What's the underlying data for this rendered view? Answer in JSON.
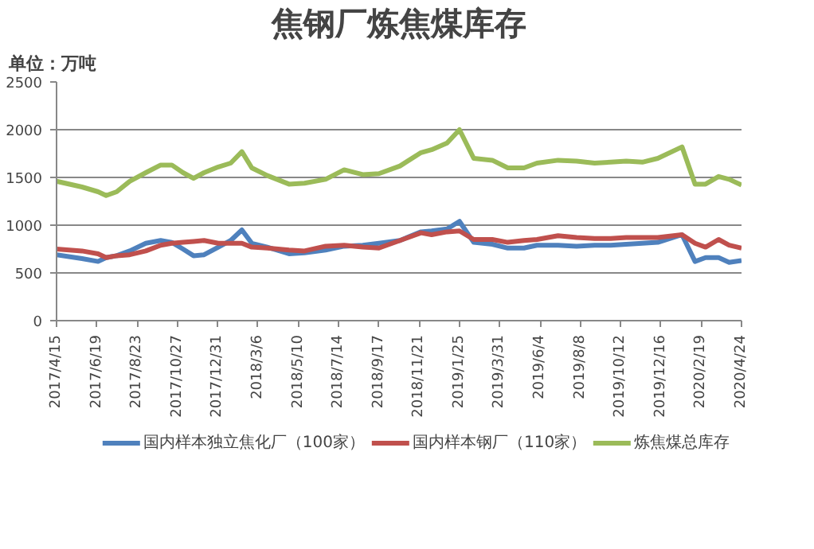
{
  "chart_data": {
    "type": "line",
    "title": "焦钢厂炼焦煤库存",
    "annotations": [
      "单位：万吨"
    ],
    "x": [
      "2017-04-15",
      "2017-05-26",
      "2017-06-21",
      "2017-07-04",
      "2017-07-21",
      "2017-08-11",
      "2017-09-06",
      "2017-09-30",
      "2017-10-18",
      "2017-11-05",
      "2017-11-22",
      "2017-12-09",
      "2018-01-01",
      "2018-01-21",
      "2018-02-08",
      "2018-02-24",
      "2018-03-21",
      "2018-04-25",
      "2018-05-20",
      "2018-06-23",
      "2018-07-23",
      "2018-08-22",
      "2018-09-17",
      "2018-10-21",
      "2018-11-24",
      "2018-12-11",
      "2019-01-05",
      "2019-01-25",
      "2019-02-17",
      "2019-03-19",
      "2019-04-13",
      "2019-05-09",
      "2019-05-30",
      "2019-07-03",
      "2019-08-02",
      "2019-08-31",
      "2019-09-26",
      "2019-10-21",
      "2019-11-16",
      "2019-12-11",
      "2020-01-19",
      "2020-02-09",
      "2020-02-26",
      "2020-03-18",
      "2020-04-04",
      "2020-04-24"
    ],
    "series": [
      {
        "name": "国内样本独立焦化厂（100家）",
        "color": "#4f81bd",
        "values": [
          690,
          650,
          620,
          660,
          680,
          730,
          810,
          840,
          820,
          750,
          680,
          690,
          770,
          840,
          950,
          810,
          770,
          700,
          710,
          740,
          780,
          790,
          810,
          840,
          930,
          940,
          960,
          1040,
          820,
          800,
          760,
          760,
          790,
          790,
          780,
          790,
          790,
          800,
          810,
          820,
          900,
          620,
          660,
          660,
          610,
          630
        ]
      },
      {
        "name": "国内样本钢厂（110家）",
        "color": "#c0504d",
        "values": [
          750,
          730,
          700,
          660,
          680,
          690,
          730,
          790,
          810,
          820,
          830,
          840,
          810,
          810,
          810,
          770,
          760,
          740,
          730,
          780,
          790,
          770,
          760,
          840,
          920,
          900,
          930,
          940,
          850,
          850,
          820,
          840,
          850,
          890,
          870,
          860,
          860,
          870,
          870,
          870,
          900,
          810,
          770,
          850,
          790,
          760
        ]
      },
      {
        "name": "炼焦煤总库存",
        "color": "#9bbb59",
        "values": [
          1460,
          1400,
          1350,
          1310,
          1350,
          1460,
          1550,
          1630,
          1630,
          1550,
          1490,
          1550,
          1610,
          1650,
          1770,
          1600,
          1520,
          1430,
          1440,
          1480,
          1580,
          1530,
          1540,
          1620,
          1760,
          1790,
          1860,
          2000,
          1700,
          1680,
          1600,
          1600,
          1650,
          1680,
          1670,
          1650,
          1660,
          1670,
          1660,
          1700,
          1820,
          1430,
          1430,
          1510,
          1480,
          1420
        ]
      }
    ],
    "xlim": [
      "2017-04-15",
      "2020-04-24"
    ],
    "xticks": [
      {
        "value": "2017-04-15",
        "label": "2017/4/15"
      },
      {
        "value": "2017-06-19",
        "label": "2017/6/19"
      },
      {
        "value": "2017-08-23",
        "label": "2017/8/23"
      },
      {
        "value": "2017-10-27",
        "label": "2017/10/27"
      },
      {
        "value": "2017-12-31",
        "label": "2017/12/31"
      },
      {
        "value": "2018-03-06",
        "label": "2018/3/6"
      },
      {
        "value": "2018-05-10",
        "label": "2018/5/10"
      },
      {
        "value": "2018-07-14",
        "label": "2018/7/14"
      },
      {
        "value": "2018-09-17",
        "label": "2018/9/17"
      },
      {
        "value": "2018-11-21",
        "label": "2018/11/21"
      },
      {
        "value": "2019-01-25",
        "label": "2019/1/25"
      },
      {
        "value": "2019-03-31",
        "label": "2019/3/31"
      },
      {
        "value": "2019-06-04",
        "label": "2019/6/4"
      },
      {
        "value": "2019-08-08",
        "label": "2019/8/8"
      },
      {
        "value": "2019-10-12",
        "label": "2019/10/12"
      },
      {
        "value": "2019-12-16",
        "label": "2019/12/16"
      },
      {
        "value": "2020-02-19",
        "label": "2020/2/19"
      },
      {
        "value": "2020-04-24",
        "label": "2020/4/24"
      }
    ],
    "ylim": [
      0,
      2500
    ],
    "yticks": [
      0,
      500,
      1000,
      1500,
      2000,
      2500
    ],
    "grid": "y",
    "legend": "bottom",
    "marker": "none",
    "line_style": "solid"
  }
}
